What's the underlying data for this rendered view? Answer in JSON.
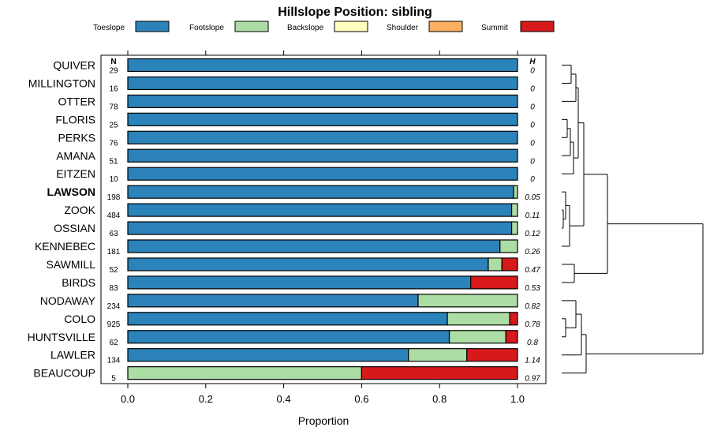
{
  "chart_data": {
    "type": "bar",
    "orientation": "horizontal",
    "stacked": true,
    "title": "Hillslope Position: sibling",
    "xlabel": "Proportion",
    "ylabel": "",
    "xlim": [
      0,
      1
    ],
    "xticks": [
      "0.0",
      "0.2",
      "0.4",
      "0.6",
      "0.8",
      "1.0"
    ],
    "xtick_values": [
      0,
      0.2,
      0.4,
      0.6,
      0.8,
      1.0
    ],
    "n_header": "N",
    "h_header": "H",
    "legend_position": "top",
    "highlighted_category": "LAWSON",
    "categories": [
      "QUIVER",
      "MILLINGTON",
      "OTTER",
      "FLORIS",
      "PERKS",
      "AMANA",
      "EITZEN",
      "LAWSON",
      "ZOOK",
      "OSSIAN",
      "KENNEBEC",
      "SAWMILL",
      "BIRDS",
      "NODAWAY",
      "COLO",
      "HUNTSVILLE",
      "LAWLER",
      "BEAUCOUP"
    ],
    "n": [
      "29",
      "16",
      "78",
      "25",
      "76",
      "51",
      "10",
      "198",
      "484",
      "63",
      "181",
      "52",
      "83",
      "234",
      "925",
      "62",
      "134",
      "5"
    ],
    "h": [
      "0",
      "0",
      "0",
      "0",
      "0",
      "0",
      "0",
      "0.05",
      "0.11",
      "0.12",
      "0.26",
      "0.47",
      "0.53",
      "0.82",
      "0.78",
      "0.8",
      "1.14",
      "0.97"
    ],
    "series": [
      {
        "name": "Toeslope",
        "color": "#2b83ba",
        "values": [
          1,
          1,
          1,
          1,
          1,
          1,
          1,
          0.99,
          0.985,
          0.985,
          0.955,
          0.925,
          0.88,
          0.745,
          0.82,
          0.825,
          0.72,
          0
        ]
      },
      {
        "name": "Footslope",
        "color": "#abdda4",
        "values": [
          0,
          0,
          0,
          0,
          0,
          0,
          0,
          0.01,
          0.015,
          0.015,
          0.045,
          0.035,
          0,
          0.255,
          0.16,
          0.145,
          0.15,
          0.6
        ]
      },
      {
        "name": "Backslope",
        "color": "#ffffbf",
        "values": [
          0,
          0,
          0,
          0,
          0,
          0,
          0,
          0,
          0,
          0,
          0,
          0,
          0,
          0,
          0,
          0,
          0,
          0
        ]
      },
      {
        "name": "Shoulder",
        "color": "#fdae61",
        "values": [
          0,
          0,
          0,
          0,
          0,
          0,
          0,
          0,
          0,
          0,
          0,
          0,
          0,
          0,
          0,
          0,
          0,
          0
        ]
      },
      {
        "name": "Summit",
        "color": "#d7191c",
        "values": [
          0,
          0,
          0,
          0,
          0,
          0,
          0,
          0,
          0,
          0,
          0,
          0.04,
          0.12,
          0,
          0.02,
          0.03,
          0.13,
          0.4
        ]
      }
    ]
  }
}
